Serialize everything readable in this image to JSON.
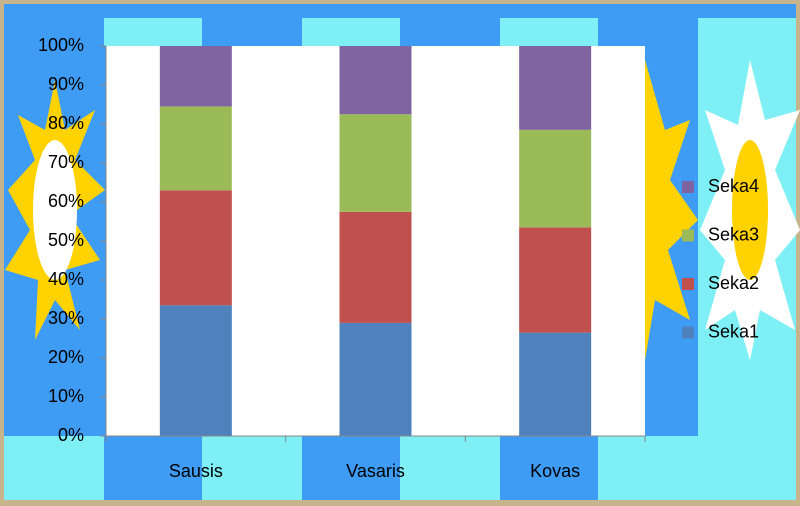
{
  "chart_data": {
    "type": "stacked_bar_100",
    "categories": [
      "Sausis",
      "Vasaris",
      "Kovas"
    ],
    "series": [
      {
        "name": "Seka1",
        "color": "#4f81bd",
        "values": [
          33.5,
          29,
          26.5
        ]
      },
      {
        "name": "Seka2",
        "color": "#c0504d",
        "values": [
          29.5,
          28.5,
          27
        ]
      },
      {
        "name": "Seka3",
        "color": "#9bbb59",
        "values": [
          21.5,
          25,
          25
        ]
      },
      {
        "name": "Seka4",
        "color": "#8064a2",
        "values": [
          15.5,
          17.5,
          21.5
        ]
      }
    ],
    "ylim": [
      0,
      100
    ],
    "yticks": [
      {
        "value": 0,
        "label": "0%"
      },
      {
        "value": 10,
        "label": "10%"
      },
      {
        "value": 20,
        "label": "20%"
      },
      {
        "value": 30,
        "label": "30%"
      },
      {
        "value": 40,
        "label": "40%"
      },
      {
        "value": 50,
        "label": "50%"
      },
      {
        "value": 60,
        "label": "60%"
      },
      {
        "value": 70,
        "label": "70%"
      },
      {
        "value": 80,
        "label": "80%"
      },
      {
        "value": 90,
        "label": "90%"
      },
      {
        "value": 100,
        "label": "100%"
      }
    ],
    "grid": false,
    "legend": "right"
  }
}
